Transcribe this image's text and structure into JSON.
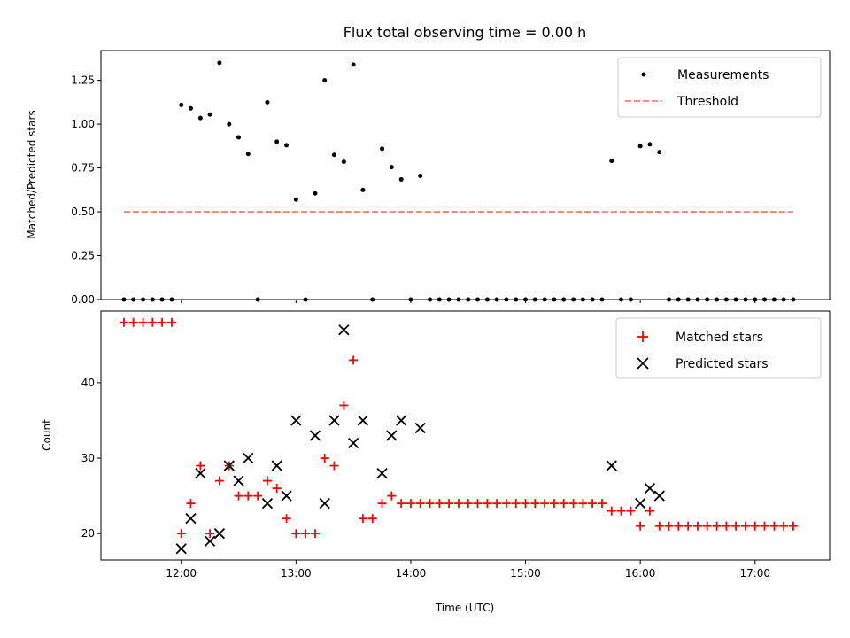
{
  "chart_data": [
    {
      "type": "scatter",
      "title": "Flux total observing time = 0.00 h",
      "xlabel": "",
      "ylabel": "Matched/Predicted stars",
      "xlim": [
        11.3,
        17.65
      ],
      "ylim": [
        0,
        1.42
      ],
      "yticks": [
        0,
        0.25,
        0.5,
        0.75,
        1.0,
        1.25
      ],
      "ytick_labels": [
        "0.00",
        "0.25",
        "0.50",
        "0.75",
        "1.00",
        "1.25"
      ],
      "grid": false,
      "legend": "top-right",
      "series": [
        {
          "name": "Measurements",
          "marker": "dot",
          "color": "#000000",
          "x": [
            11.5,
            11.583,
            11.667,
            11.75,
            11.833,
            11.917,
            12.0,
            12.083,
            12.167,
            12.25,
            12.333,
            12.417,
            12.5,
            12.583,
            12.667,
            12.75,
            12.833,
            12.917,
            13.0,
            13.083,
            13.167,
            13.25,
            13.333,
            13.417,
            13.5,
            13.583,
            13.667,
            13.75,
            13.833,
            13.917,
            14.0,
            14.083,
            14.167,
            14.25,
            14.333,
            14.417,
            14.5,
            14.583,
            14.667,
            14.75,
            14.833,
            14.917,
            15.0,
            15.083,
            15.167,
            15.25,
            15.333,
            15.417,
            15.5,
            15.583,
            15.667,
            15.75,
            15.833,
            15.917,
            16.0,
            16.083,
            16.167,
            16.25,
            16.333,
            16.417,
            16.5,
            16.583,
            16.667,
            16.75,
            16.833,
            16.917,
            17.0,
            17.083,
            17.167,
            17.25,
            17.333
          ],
          "y": [
            0,
            0,
            0,
            0,
            0,
            0,
            1.11,
            1.09,
            1.035,
            1.055,
            1.35,
            1.0,
            0.925,
            0.83,
            0,
            1.125,
            0.9,
            0.88,
            0.57,
            0,
            0.605,
            1.25,
            0.825,
            0.785,
            1.34,
            0.625,
            0,
            0.86,
            0.755,
            0.685,
            0,
            0.705,
            0,
            0,
            0,
            0,
            0,
            0,
            0,
            0,
            0,
            0,
            0,
            0,
            0,
            0,
            0,
            0,
            0,
            0,
            0,
            0.79,
            0,
            0,
            0.875,
            0.885,
            0.84,
            0,
            0,
            0,
            0,
            0,
            0,
            0,
            0,
            0,
            0,
            0,
            0,
            0,
            0
          ]
        },
        {
          "name": "Threshold",
          "type": "line",
          "style": "dashed",
          "color": "#ff7f7f",
          "x": [
            11.5,
            17.333
          ],
          "y": [
            0.5,
            0.5
          ]
        }
      ]
    },
    {
      "type": "scatter",
      "title": "",
      "xlabel": "Time (UTC)",
      "ylabel": "Count",
      "xlim": [
        11.3,
        17.65
      ],
      "ylim": [
        16.5,
        49.5
      ],
      "xticks": [
        12,
        13,
        14,
        15,
        16,
        17
      ],
      "xtick_labels": [
        "12:00",
        "13:00",
        "14:00",
        "15:00",
        "16:00",
        "17:00"
      ],
      "yticks": [
        20,
        30,
        40
      ],
      "ytick_labels": [
        "20",
        "30",
        "40"
      ],
      "grid": false,
      "legend": "top-right",
      "series": [
        {
          "name": "Matched stars",
          "marker": "plus",
          "color": "#ff0000",
          "x": [
            11.5,
            11.583,
            11.667,
            11.75,
            11.833,
            11.917,
            12.0,
            12.083,
            12.167,
            12.25,
            12.333,
            12.417,
            12.5,
            12.583,
            12.667,
            12.75,
            12.833,
            12.917,
            13.0,
            13.083,
            13.167,
            13.25,
            13.333,
            13.417,
            13.5,
            13.583,
            13.667,
            13.75,
            13.833,
            13.917,
            14.0,
            14.083,
            14.167,
            14.25,
            14.333,
            14.417,
            14.5,
            14.583,
            14.667,
            14.75,
            14.833,
            14.917,
            15.0,
            15.083,
            15.167,
            15.25,
            15.333,
            15.417,
            15.5,
            15.583,
            15.667,
            15.75,
            15.833,
            15.917,
            16.0,
            16.083,
            16.167,
            16.25,
            16.333,
            16.417,
            16.5,
            16.583,
            16.667,
            16.75,
            16.833,
            16.917,
            17.0,
            17.083,
            17.167,
            17.25,
            17.333
          ],
          "y": [
            48,
            48,
            48,
            48,
            48,
            48,
            20,
            24,
            29,
            20,
            27,
            29,
            25,
            25,
            25,
            27,
            26,
            22,
            20,
            20,
            20,
            30,
            29,
            37,
            43,
            22,
            22,
            24,
            25,
            24,
            24,
            24,
            24,
            24,
            24,
            24,
            24,
            24,
            24,
            24,
            24,
            24,
            24,
            24,
            24,
            24,
            24,
            24,
            24,
            24,
            24,
            23,
            23,
            23,
            21,
            23,
            21,
            21,
            21,
            21,
            21,
            21,
            21,
            21,
            21,
            21,
            21,
            21,
            21,
            21,
            21
          ]
        },
        {
          "name": "Predicted stars",
          "marker": "x",
          "color": "#000000",
          "x": [
            12.0,
            12.083,
            12.167,
            12.25,
            12.333,
            12.417,
            12.5,
            12.583,
            12.75,
            12.833,
            12.917,
            13.0,
            13.167,
            13.25,
            13.333,
            13.417,
            13.5,
            13.583,
            13.75,
            13.833,
            13.917,
            14.083,
            15.75,
            16.0,
            16.083,
            16.167
          ],
          "y": [
            18,
            22,
            28,
            19,
            20,
            29,
            27,
            30,
            24,
            29,
            25,
            35,
            33,
            24,
            35,
            47,
            32,
            35,
            28,
            33,
            35,
            34,
            29,
            24,
            26,
            25
          ]
        }
      ]
    }
  ]
}
